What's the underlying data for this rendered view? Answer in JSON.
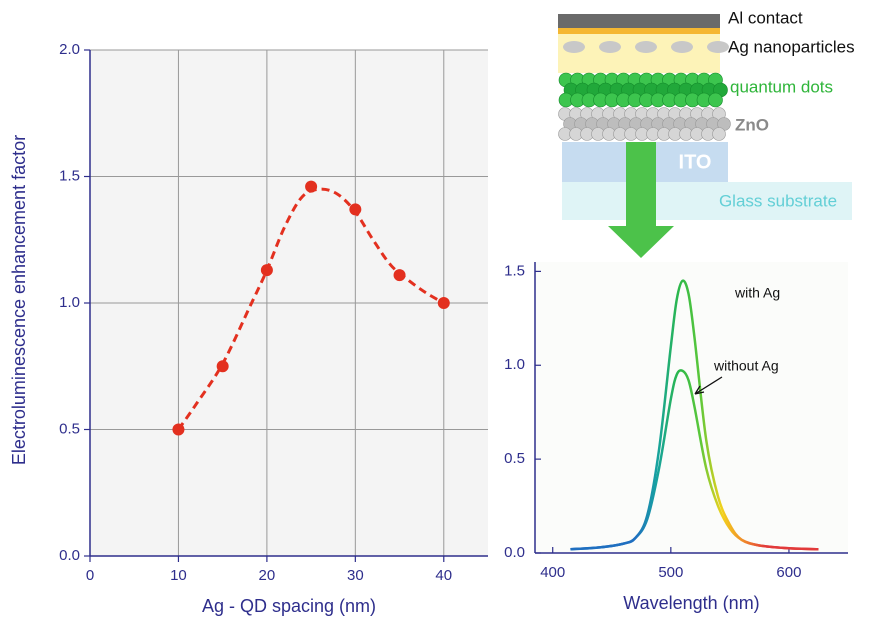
{
  "chart_data": [
    {
      "type": "scatter",
      "x_label": "Ag - QD spacing (nm)",
      "y_label": "Electroluminescence enhancement factor",
      "xlim": [
        0,
        45
      ],
      "ylim": [
        0,
        2
      ],
      "xticks": [
        0,
        10,
        20,
        30,
        40
      ],
      "yticks": [
        {
          "value": 0,
          "label": "0.0"
        },
        0.5,
        {
          "value": 1,
          "label": "1.0"
        },
        1.5,
        {
          "value": 2,
          "label": "2.0"
        }
      ],
      "grid": true,
      "series": [
        {
          "mode": "markers",
          "color": "#e3301f",
          "x": [
            10,
            15,
            20,
            25,
            30,
            35,
            40
          ],
          "values": [
            0.5,
            0.75,
            1.13,
            1.46,
            1.37,
            1.11,
            1.0
          ]
        },
        {
          "mode": "dashed-line",
          "color": "#e3301f",
          "x": [
            10,
            12,
            15,
            18,
            20,
            22,
            24,
            26,
            28,
            30,
            32,
            34,
            36,
            38,
            40
          ],
          "values": [
            0.5,
            0.6,
            0.76,
            0.98,
            1.13,
            1.3,
            1.42,
            1.45,
            1.43,
            1.36,
            1.25,
            1.15,
            1.09,
            1.04,
            1.0
          ]
        }
      ]
    },
    {
      "type": "line",
      "x_label": "Wavelength (nm)",
      "xlim": [
        385,
        650
      ],
      "ylim": [
        0,
        1.55
      ],
      "xticks": [
        400,
        500,
        600
      ],
      "yticks": [
        {
          "value": 0,
          "label": "0.0"
        },
        0.5,
        {
          "value": 1,
          "label": "1.0"
        },
        1.5
      ],
      "grid": false,
      "line_gradient": [
        "#1f6fc0",
        "#17a3a0",
        "#2cb84a",
        "#5cc83a",
        "#f2d21c",
        "#f08a2a",
        "#e23a3a"
      ],
      "series": [
        {
          "name": "with Ag",
          "x": [
            415,
            440,
            460,
            470,
            480,
            490,
            500,
            505,
            510,
            515,
            520,
            530,
            540,
            550,
            560,
            575,
            600,
            625
          ],
          "values": [
            0.02,
            0.03,
            0.05,
            0.08,
            0.2,
            0.55,
            1.1,
            1.35,
            1.45,
            1.38,
            1.15,
            0.6,
            0.3,
            0.15,
            0.07,
            0.04,
            0.025,
            0.02
          ]
        },
        {
          "name": "without Ag",
          "x": [
            415,
            440,
            460,
            470,
            480,
            490,
            500,
            505,
            510,
            515,
            520,
            530,
            540,
            550,
            560,
            575,
            600,
            625
          ],
          "values": [
            0.02,
            0.03,
            0.05,
            0.08,
            0.18,
            0.45,
            0.82,
            0.95,
            0.97,
            0.92,
            0.78,
            0.45,
            0.25,
            0.13,
            0.07,
            0.04,
            0.025,
            0.02
          ]
        }
      ]
    }
  ],
  "diagram": {
    "layers": [
      "Al contact",
      "Ag nanoparticles",
      "quantum dots",
      "ZnO",
      "ITO",
      "Glass substrate"
    ]
  }
}
